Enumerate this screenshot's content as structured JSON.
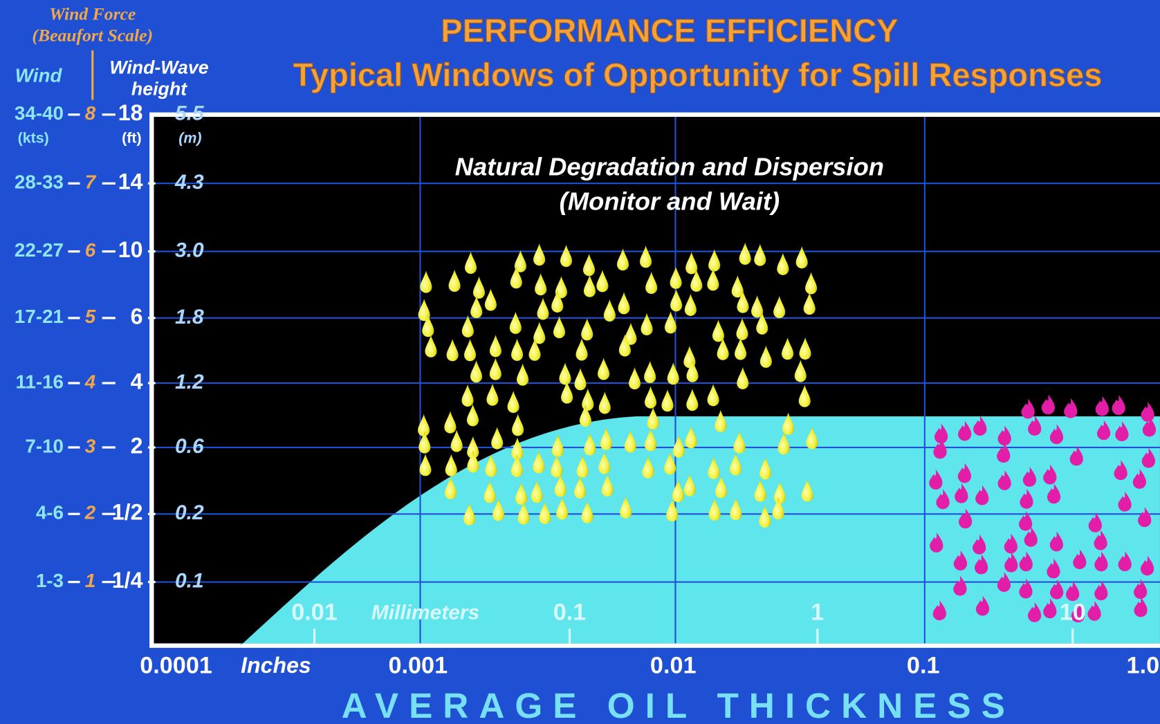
{
  "title": "PERFORMANCE EFFICIENCY",
  "subtitle": "Typical Windows of Opportunity for Spill Responses",
  "left_header": {
    "wind_force": "Wind Force",
    "beaufort_scale": "(Beaufort Scale)",
    "wind": "Wind",
    "wave_line1": "Wind-Wave",
    "wave_line2": "height",
    "kts": "(kts)",
    "ft": "(ft)",
    "m": "(m)"
  },
  "rows": [
    {
      "wind": "34-40",
      "beaufort": "8",
      "ft": "18",
      "m": "5.5"
    },
    {
      "wind": "28-33",
      "beaufort": "7",
      "ft": "14",
      "m": "4.3"
    },
    {
      "wind": "22-27",
      "beaufort": "6",
      "ft": "10",
      "m": "3.0"
    },
    {
      "wind": "17-21",
      "beaufort": "5",
      "ft": "6",
      "m": "1.8"
    },
    {
      "wind": "11-16",
      "beaufort": "4",
      "ft": "4",
      "m": "1.2"
    },
    {
      "wind": "7-10",
      "beaufort": "3",
      "ft": "2",
      "m": "0.6"
    },
    {
      "wind": "4-6",
      "beaufort": "2",
      "ft": "1/2",
      "m": "0.2"
    },
    {
      "wind": "1-3",
      "beaufort": "1",
      "ft": "1/4",
      "m": "0.1"
    }
  ],
  "region_label": [
    "Natural Degradation and Dispersion",
    "(Monitor and Wait)"
  ],
  "mm_axis": {
    "unit": "Millimeters",
    "ticks": [
      "0.01",
      "0.1",
      "1",
      "10"
    ]
  },
  "inch_axis": {
    "unit": "Inches",
    "ticks": [
      "0.0001",
      "0.001",
      "0.01",
      "0.1",
      "1.0"
    ]
  },
  "x_title": "AVERAGE OIL THICKNESS"
}
